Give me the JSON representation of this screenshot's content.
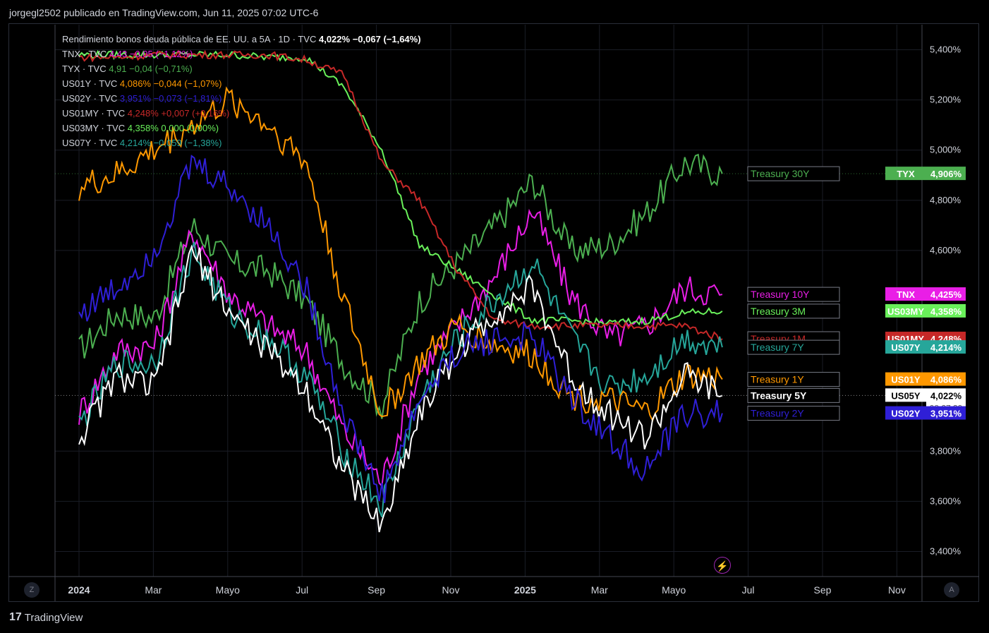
{
  "header": {
    "publisher_line": "jorgegl2502 publicado en TradingView.com, Jun 11, 2025 07:02 UTC-6"
  },
  "legend": {
    "main": {
      "name": "Rendimiento bonos deuda pública de EE. UU. a 5A · 1D · TVC",
      "value": "4,022%",
      "change": "−0,067 (−1,64%)"
    },
    "rows": [
      {
        "name": "TNX · TVC",
        "value": "4,43",
        "change": "−0,05 (−1,12%)",
        "color": "#e91ee6"
      },
      {
        "name": "TYX · TVC",
        "value": "4,91",
        "change": "−0,04 (−0,71%)",
        "color": "#4caf50"
      },
      {
        "name": "US01Y · TVC",
        "value": "4,086%",
        "change": "−0,044 (−1,07%)",
        "color": "#ff9800"
      },
      {
        "name": "US02Y · TVC",
        "value": "3,951%",
        "change": "−0,073 (−1,81%)",
        "color": "#2f1fd6"
      },
      {
        "name": "US01MY · TVC",
        "value": "4,248%",
        "change": "+0,007 (+0,16%)",
        "color": "#c62828"
      },
      {
        "name": "US03MY · TVC",
        "value": "4,358%",
        "change": "0,000 (0,00%)",
        "color": "#69f05a"
      },
      {
        "name": "US07Y · TVC",
        "value": "4,214%",
        "change": "−0,059 (−1,38%)",
        "color": "#26a69a"
      }
    ]
  },
  "chart_data": {
    "type": "line",
    "title": "Rendimiento bonos deuda pública de EE. UU. a 5A · 1D · TVC",
    "x_ticks": [
      "2024",
      "Mar",
      "Mayo",
      "Jul",
      "Sep",
      "Nov",
      "2025",
      "Mar",
      "Mayo",
      "Jul",
      "Sep",
      "Nov"
    ],
    "y_ticks": [
      "5,400%",
      "5,200%",
      "5,000%",
      "4,800%",
      "4,600%",
      "3,800%",
      "3,600%",
      "3,400%"
    ],
    "ylim": [
      3.3,
      5.5
    ],
    "x": [
      "2024-01",
      "2024-02",
      "2024-03",
      "2024-04",
      "2024-05",
      "2024-06",
      "2024-07",
      "2024-08",
      "2024-09",
      "2024-10",
      "2024-11",
      "2024-12",
      "2025-01",
      "2025-02",
      "2025-03",
      "2025-04",
      "2025-05",
      "2025-06"
    ],
    "series": [
      {
        "name": "Treasury 30Y",
        "ticker": "TYX",
        "color": "#4caf50",
        "values": [
          4.2,
          4.35,
          4.33,
          4.7,
          4.55,
          4.52,
          4.4,
          4.15,
          3.98,
          4.4,
          4.55,
          4.7,
          4.88,
          4.6,
          4.62,
          4.75,
          4.95,
          4.906
        ]
      },
      {
        "name": "Treasury 10Y",
        "ticker": "TNX",
        "color": "#e91ee6",
        "values": [
          3.95,
          4.2,
          4.22,
          4.68,
          4.42,
          4.3,
          4.2,
          3.88,
          3.68,
          4.12,
          4.3,
          4.5,
          4.76,
          4.42,
          4.25,
          4.3,
          4.45,
          4.425
        ]
      },
      {
        "name": "Treasury 3M",
        "ticker": "US03MY",
        "color": "#69f05a",
        "values": [
          5.38,
          5.38,
          5.38,
          5.38,
          5.38,
          5.37,
          5.37,
          5.25,
          5.0,
          4.62,
          4.52,
          4.42,
          4.32,
          4.32,
          4.31,
          4.32,
          4.35,
          4.358
        ]
      },
      {
        "name": "Treasury 1M",
        "ticker": "US01MY",
        "color": "#c62828",
        "values": [
          5.37,
          5.37,
          5.38,
          5.38,
          5.38,
          5.38,
          5.36,
          5.3,
          4.95,
          4.8,
          4.52,
          4.32,
          4.3,
          4.3,
          4.3,
          4.3,
          4.3,
          4.248
        ]
      },
      {
        "name": "Treasury 7Y",
        "ticker": "US07Y",
        "color": "#26a69a",
        "values": [
          3.9,
          4.15,
          4.15,
          4.6,
          4.35,
          4.25,
          4.1,
          3.8,
          3.58,
          4.0,
          4.25,
          4.4,
          4.55,
          4.25,
          4.05,
          4.1,
          4.25,
          4.214
        ]
      },
      {
        "name": "Treasury 1Y",
        "ticker": "US01Y",
        "color": "#ff9800",
        "values": [
          4.85,
          4.9,
          5.0,
          5.1,
          5.2,
          5.1,
          4.95,
          4.4,
          3.95,
          4.15,
          4.3,
          4.22,
          4.18,
          4.02,
          4.0,
          3.95,
          4.1,
          4.086
        ]
      },
      {
        "name": "Treasury 5Y",
        "ticker": "US05Y",
        "color": "#ffffff",
        "values": [
          3.85,
          4.1,
          4.05,
          4.6,
          4.35,
          4.2,
          4.05,
          3.72,
          3.5,
          3.95,
          4.2,
          4.35,
          4.45,
          4.1,
          3.95,
          3.85,
          4.1,
          4.022
        ]
      },
      {
        "name": "Treasury 2Y",
        "ticker": "US02Y",
        "color": "#2f1fd6",
        "values": [
          4.35,
          4.45,
          4.6,
          4.95,
          4.85,
          4.7,
          4.45,
          3.95,
          3.62,
          4.0,
          4.2,
          4.25,
          4.25,
          4.02,
          3.85,
          3.72,
          3.95,
          3.951
        ]
      }
    ],
    "last_price_labels": [
      {
        "ticker": "TYX",
        "value": "4,906%",
        "color": "#4caf50"
      },
      {
        "ticker": "TNX",
        "value": "4,425%",
        "color": "#e91ee6"
      },
      {
        "ticker": "US03MY",
        "value": "4,358%",
        "color": "#69f05a"
      },
      {
        "ticker": "US01MY",
        "value": "4,248%",
        "color": "#c62828"
      },
      {
        "ticker": "US07Y",
        "value": "4,214%",
        "color": "#26a69a"
      },
      {
        "ticker": "US01Y",
        "value": "4,086%",
        "color": "#ff9800"
      },
      {
        "ticker": "US05Y",
        "value": "4,022%",
        "color": "#ffffff",
        "countdown": "08:27:39"
      },
      {
        "ticker": "US02Y",
        "value": "3,951%",
        "color": "#2f1fd6"
      }
    ],
    "grid": true
  },
  "footer": {
    "brand": "TradingView",
    "logo_glyph": "17"
  },
  "controls": {
    "left_button": "Z",
    "right_button": "A",
    "bolt_glyph": "⚡"
  }
}
